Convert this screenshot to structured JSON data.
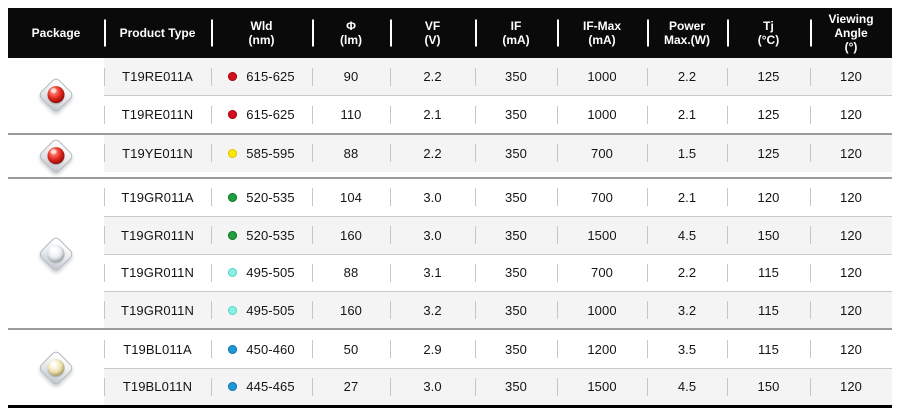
{
  "colors": {
    "header_bg": "#0a0a0a",
    "header_text": "#ffffff",
    "stripe_row": "#f4f4f5",
    "group_divider": "#9b9b9b",
    "row_divider": "#c9c9c9",
    "dot_red": "#d4101e",
    "dot_yellow": "#ffe70a",
    "dot_green": "#1fa03c",
    "dot_cyan": "#8af0e2",
    "dot_blue": "#1e97d6"
  },
  "table": {
    "headers": [
      "Package",
      "Product Type",
      "Wld\n(nm)",
      "Φ\n(lm)",
      "VF\n(V)",
      "IF\n(mA)",
      "IF-Max\n(mA)",
      "Power\nMax.(W)",
      "Tj\n(°C)",
      "Viewing\nAngle\n(°)"
    ],
    "groups": [
      {
        "package": "red",
        "package_label": "led-package-red-dome",
        "rows": [
          {
            "product_type": "T19RE011A",
            "dot": "red",
            "wld": "615-625",
            "flux": "90",
            "vf": "2.2",
            "if": "350",
            "if_max": "1000",
            "power_max": "2.2",
            "tj": "125",
            "viewing_angle": "120"
          },
          {
            "product_type": "T19RE011N",
            "dot": "red",
            "wld": "615-625",
            "flux": "110",
            "vf": "2.1",
            "if": "350",
            "if_max": "1000",
            "power_max": "2.1",
            "tj": "125",
            "viewing_angle": "120"
          }
        ]
      },
      {
        "package": "red",
        "package_label": "led-package-red-dome",
        "rows": [
          {
            "product_type": "T19YE011N",
            "dot": "yellow",
            "wld": "585-595",
            "flux": "88",
            "vf": "2.2",
            "if": "350",
            "if_max": "700",
            "power_max": "1.5",
            "tj": "125",
            "viewing_angle": "120"
          }
        ]
      },
      {
        "package": "clear",
        "package_label": "led-package-clear-dome",
        "rows": [
          {
            "product_type": "T19GR011A",
            "dot": "green",
            "wld": "520-535",
            "flux": "104",
            "vf": "3.0",
            "if": "350",
            "if_max": "700",
            "power_max": "2.1",
            "tj": "120",
            "viewing_angle": "120"
          },
          {
            "product_type": "T19GR011N",
            "dot": "green",
            "wld": "520-535",
            "flux": "160",
            "vf": "3.0",
            "if": "350",
            "if_max": "1500",
            "power_max": "4.5",
            "tj": "150",
            "viewing_angle": "120"
          },
          {
            "product_type": "T19GR011N",
            "dot": "cyan",
            "wld": "495-505",
            "flux": "88",
            "vf": "3.1",
            "if": "350",
            "if_max": "700",
            "power_max": "2.2",
            "tj": "115",
            "viewing_angle": "120"
          },
          {
            "product_type": "T19GR011N",
            "dot": "cyan",
            "wld": "495-505",
            "flux": "160",
            "vf": "3.2",
            "if": "350",
            "if_max": "1000",
            "power_max": "3.2",
            "tj": "115",
            "viewing_angle": "120"
          }
        ]
      },
      {
        "package": "warm",
        "package_label": "led-package-warm-dome",
        "rows": [
          {
            "product_type": "T19BL011A",
            "dot": "blue",
            "wld": "450-460",
            "flux": "50",
            "vf": "2.9",
            "if": "350",
            "if_max": "1200",
            "power_max": "3.5",
            "tj": "115",
            "viewing_angle": "120"
          },
          {
            "product_type": "T19BL011N",
            "dot": "blue",
            "wld": "445-465",
            "flux": "27",
            "vf": "3.0",
            "if": "350",
            "if_max": "1500",
            "power_max": "4.5",
            "tj": "150",
            "viewing_angle": "120"
          }
        ]
      }
    ]
  }
}
